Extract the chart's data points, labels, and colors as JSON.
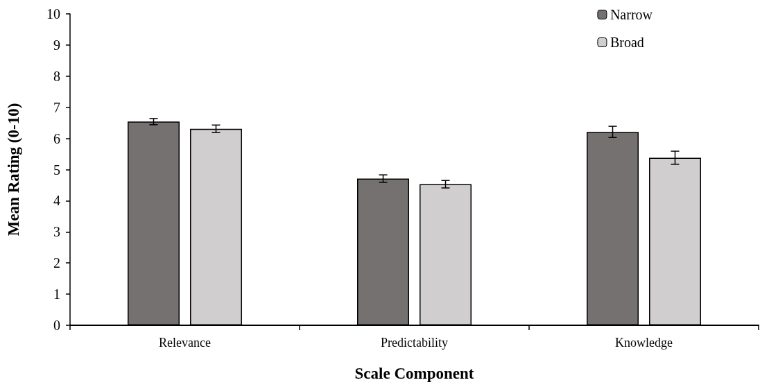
{
  "chart_data": {
    "type": "bar",
    "xlabel": "Scale Component",
    "ylabel": "Mean Rating (0-10)",
    "categories": [
      "Relevance",
      "Predictability",
      "Knowledge"
    ],
    "series": [
      {
        "name": "Narrow",
        "color": "#767171",
        "values": [
          6.54,
          4.71,
          6.21
        ],
        "errors": [
          0.1,
          0.12,
          0.18
        ]
      },
      {
        "name": "Broad",
        "color": "#d0cece",
        "values": [
          6.31,
          4.53,
          5.38
        ],
        "errors": [
          0.12,
          0.12,
          0.21
        ]
      }
    ],
    "ylim": [
      0,
      10
    ],
    "yticks": [
      0,
      1,
      2,
      3,
      4,
      5,
      6,
      7,
      8,
      9,
      10
    ],
    "grid": false,
    "legend": "top right"
  }
}
